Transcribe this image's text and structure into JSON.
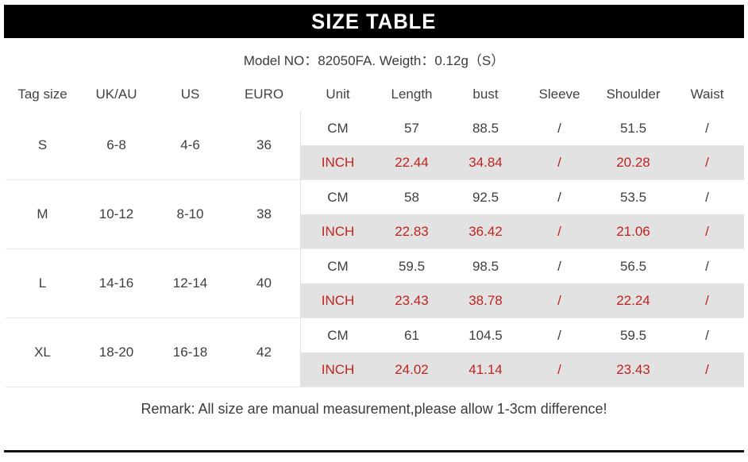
{
  "page": {
    "title": "SIZE TABLE",
    "model_line": "Model NO：82050FA. Weigth：0.12g（S）",
    "remark": "Remark: All size are manual measurement,please allow 1-3cm difference!"
  },
  "colors": {
    "header_bar_black": "#000000",
    "band_gray": "#e3e2e2",
    "accent_red": "#c0241e",
    "text_dark": "#3e3e3e"
  },
  "table": {
    "headers": [
      "Tag size",
      "UK/AU",
      "US",
      "EURO",
      "Unit",
      "Length",
      "bust",
      "Sleeve",
      "Shoulder",
      "Waist"
    ],
    "groups": [
      {
        "tag": "S",
        "uk_au": "6-8",
        "us": "4-6",
        "euro": "36",
        "cm": {
          "unit": "CM",
          "length": "57",
          "bust": "88.5",
          "sleeve": "/",
          "shoulder": "51.5",
          "waist": "/"
        },
        "inch": {
          "unit": "INCH",
          "length": "22.44",
          "bust": "34.84",
          "sleeve": "/",
          "shoulder": "20.28",
          "waist": "/"
        }
      },
      {
        "tag": "M",
        "uk_au": "10-12",
        "us": "8-10",
        "euro": "38",
        "cm": {
          "unit": "CM",
          "length": "58",
          "bust": "92.5",
          "sleeve": "/",
          "shoulder": "53.5",
          "waist": "/"
        },
        "inch": {
          "unit": "INCH",
          "length": "22.83",
          "bust": "36.42",
          "sleeve": "/",
          "shoulder": "21.06",
          "waist": "/"
        }
      },
      {
        "tag": "L",
        "uk_au": "14-16",
        "us": "12-14",
        "euro": "40",
        "cm": {
          "unit": "CM",
          "length": "59.5",
          "bust": "98.5",
          "sleeve": "/",
          "shoulder": "56.5",
          "waist": "/"
        },
        "inch": {
          "unit": "INCH",
          "length": "23.43",
          "bust": "38.78",
          "sleeve": "/",
          "shoulder": "22.24",
          "waist": "/"
        }
      },
      {
        "tag": "XL",
        "uk_au": "18-20",
        "us": "16-18",
        "euro": "42",
        "cm": {
          "unit": "CM",
          "length": "61",
          "bust": "104.5",
          "sleeve": "/",
          "shoulder": "59.5",
          "waist": "/"
        },
        "inch": {
          "unit": "INCH",
          "length": "24.02",
          "bust": "41.14",
          "sleeve": "/",
          "shoulder": "23.43",
          "waist": "/"
        }
      }
    ]
  }
}
